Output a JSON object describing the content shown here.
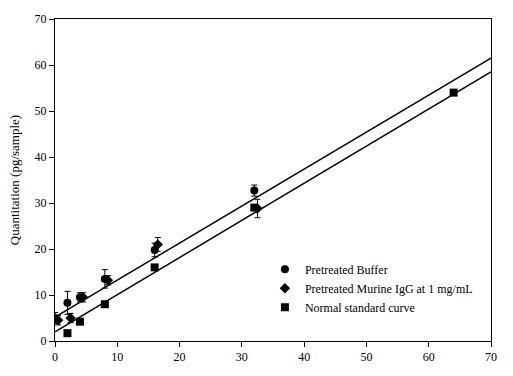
{
  "chart_data": {
    "type": "scatter",
    "y_label": "Quantitation (pg/sample)",
    "xlim": [
      0,
      70
    ],
    "xticks": [
      0,
      10,
      20,
      30,
      40,
      50,
      60,
      70
    ],
    "ylim": [
      0,
      70
    ],
    "yticks": [
      0,
      10,
      20,
      30,
      40,
      50,
      60,
      70
    ],
    "grid": false,
    "legend": "lower right",
    "series": [
      {
        "name": "Pretreated Buffer",
        "type": "scatter",
        "marker": "circle",
        "color": "#000000",
        "x": [
          0,
          2,
          4,
          8,
          16,
          32
        ],
        "values": [
          5,
          8.3,
          9.5,
          13.5,
          19.8,
          32.7
        ],
        "error": [
          1.2,
          2.5,
          1,
          2,
          1.5,
          1.2
        ]
      },
      {
        "name": "Pretreated Murine IgG at 1 mg/mL",
        "type": "scatter",
        "marker": "diamond",
        "color": "#000000",
        "x": [
          0.5,
          2.5,
          4.5,
          8.5,
          16.5,
          32.5
        ],
        "values": [
          4.5,
          5,
          9.5,
          13.2,
          21,
          28.8
        ],
        "error": [
          1,
          1,
          1,
          1,
          1.5,
          2
        ]
      },
      {
        "name": "Normal standard curve",
        "type": "scatter",
        "marker": "square",
        "color": "#000000",
        "x": [
          2,
          4,
          8,
          16,
          32,
          64
        ],
        "values": [
          1.7,
          4.2,
          8,
          16,
          29,
          54
        ]
      },
      {
        "type": "line",
        "line_style": "solid",
        "color": "#000000",
        "x": [
          0,
          70
        ],
        "values": [
          5.2,
          61.5
        ]
      },
      {
        "type": "line",
        "line_style": "solid",
        "color": "#000000",
        "x": [
          0,
          70
        ],
        "values": [
          2,
          58.5
        ]
      }
    ]
  }
}
